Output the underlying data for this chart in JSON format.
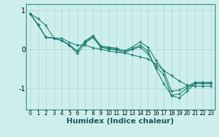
{
  "background_color": "#cdeeed",
  "line_color": "#1a7a6e",
  "grid_color": "#aed8d5",
  "xlabel": "Humidex (Indice chaleur)",
  "xlabel_fontsize": 8,
  "ylim": [
    -1.55,
    1.15
  ],
  "xlim": [
    -0.5,
    23.5
  ],
  "yticks": [
    -1,
    0,
    1
  ],
  "xticks": [
    0,
    1,
    2,
    3,
    4,
    5,
    6,
    7,
    8,
    9,
    10,
    11,
    12,
    13,
    14,
    15,
    16,
    17,
    18,
    19,
    20,
    21,
    22,
    23
  ],
  "series1": [
    0.9,
    0.78,
    0.6,
    0.28,
    0.28,
    0.17,
    0.1,
    0.1,
    0.03,
    0.0,
    -0.05,
    -0.08,
    -0.1,
    -0.15,
    -0.2,
    -0.25,
    -0.38,
    -0.55,
    -0.68,
    -0.82,
    -0.92,
    -0.95,
    -0.95,
    -0.95
  ],
  "series2": [
    0.9,
    0.62,
    0.3,
    0.28,
    0.22,
    0.1,
    -0.05,
    0.2,
    0.35,
    0.08,
    0.05,
    0.02,
    -0.05,
    0.05,
    0.18,
    0.05,
    -0.28,
    -0.55,
    -1.08,
    -1.05,
    -0.95,
    -0.85,
    -0.85,
    -0.85
  ],
  "series3": [
    0.9,
    0.62,
    0.3,
    0.28,
    0.22,
    0.1,
    -0.12,
    0.15,
    0.3,
    0.05,
    0.0,
    -0.02,
    -0.1,
    0.0,
    0.05,
    -0.12,
    -0.45,
    -0.65,
    -1.2,
    -1.25,
    -1.08,
    -0.88,
    -0.88,
    -0.88
  ],
  "series4": [
    0.9,
    0.62,
    0.3,
    0.28,
    0.22,
    0.1,
    -0.05,
    0.2,
    0.3,
    0.05,
    0.02,
    0.0,
    -0.05,
    0.0,
    0.1,
    -0.05,
    -0.5,
    -0.88,
    -1.18,
    -1.15,
    -1.0,
    -0.88,
    -0.88,
    -0.88
  ]
}
